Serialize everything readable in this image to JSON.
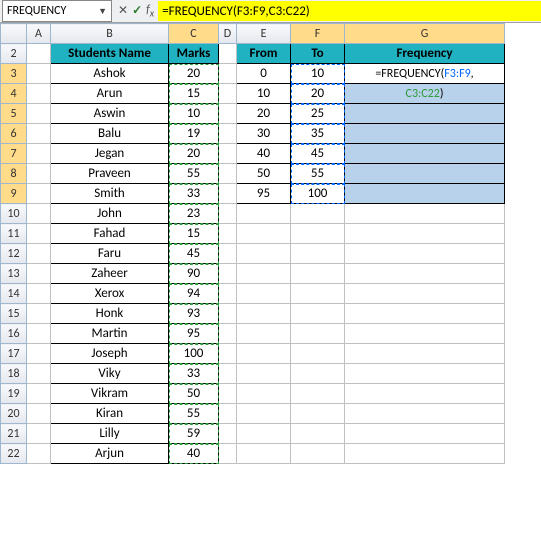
{
  "nameBox": "FREQUENCY",
  "formula": "=FREQUENCY(F3:F9,C3:C22)",
  "formulaDisplay": {
    "prefix": "=FREQUENCY(",
    "ref1": "F3:F9",
    "sep": ",",
    "ref2": "C3:C22",
    "suffix": ")"
  },
  "colHeaders": [
    "A",
    "B",
    "C",
    "D",
    "E",
    "F",
    "G"
  ],
  "rowHeaders": [
    2,
    3,
    4,
    5,
    6,
    7,
    8,
    9,
    10,
    11,
    12,
    13,
    14,
    15,
    16,
    17,
    18,
    19,
    20,
    21,
    22
  ],
  "headers": {
    "B": "Students Name",
    "C": "Marks",
    "E": "From",
    "F": "To",
    "G": "Frequency"
  },
  "students": [
    {
      "name": "Ashok",
      "marks": 20
    },
    {
      "name": "Arun",
      "marks": 15
    },
    {
      "name": "Aswin",
      "marks": 10
    },
    {
      "name": "Balu",
      "marks": 19
    },
    {
      "name": "Jegan",
      "marks": 20
    },
    {
      "name": "Praveen",
      "marks": 55
    },
    {
      "name": "Smith",
      "marks": 33
    },
    {
      "name": "John",
      "marks": 23
    },
    {
      "name": "Fahad",
      "marks": 15
    },
    {
      "name": "Faru",
      "marks": 45
    },
    {
      "name": "Zaheer",
      "marks": 90
    },
    {
      "name": "Xerox",
      "marks": 94
    },
    {
      "name": "Honk",
      "marks": 93
    },
    {
      "name": "Martin",
      "marks": 95
    },
    {
      "name": "Joseph",
      "marks": 100
    },
    {
      "name": "Viky",
      "marks": 33
    },
    {
      "name": "Vikram",
      "marks": 50
    },
    {
      "name": "Kiran",
      "marks": 55
    },
    {
      "name": "Lilly",
      "marks": 59
    },
    {
      "name": "Arjun",
      "marks": 40
    }
  ],
  "bins": [
    {
      "from": 0,
      "to": 10
    },
    {
      "from": 10,
      "to": 20
    },
    {
      "from": 20,
      "to": 25
    },
    {
      "from": 30,
      "to": 35
    },
    {
      "from": 40,
      "to": 45
    },
    {
      "from": 50,
      "to": 55
    },
    {
      "from": 95,
      "to": 100
    }
  ],
  "g3": {
    "prefix": "=FREQUENCY(",
    "ref1": "F3:F9",
    "sep": ",",
    "line2ref": "C3:C22",
    "line2suffix": ")"
  },
  "colors": {
    "headerTeal": "#21b2c1",
    "selBlue": "#b8d2ec",
    "redBox": "#ff0000",
    "ref1": "#0066ff",
    "ref2": "#2e9b3a",
    "highlight": "#ffff00"
  }
}
